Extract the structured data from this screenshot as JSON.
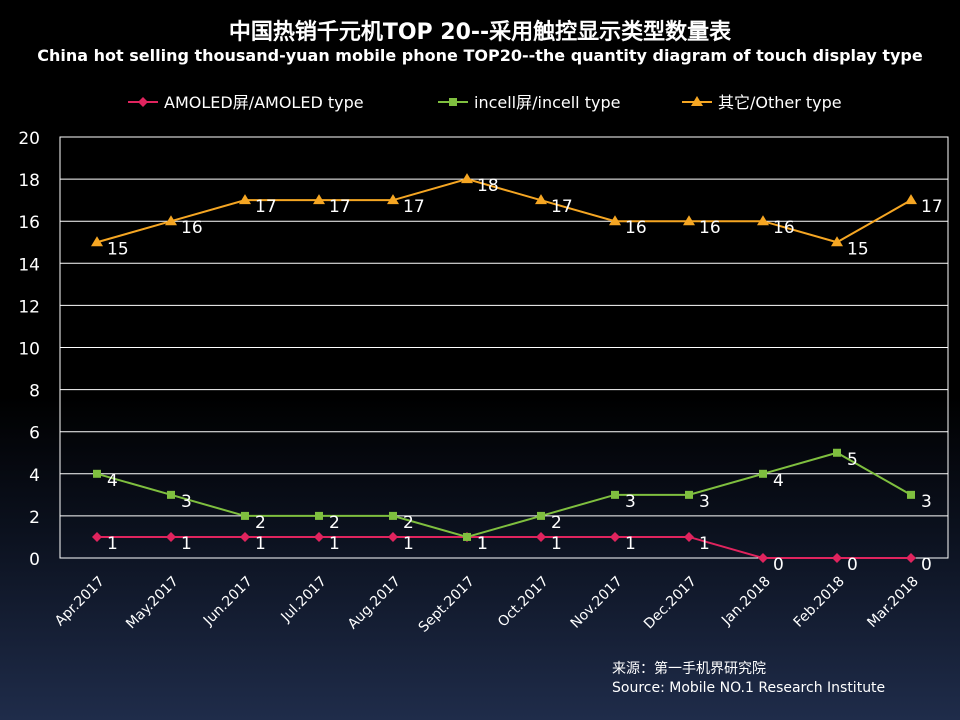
{
  "header": {
    "title_cn": "中国热销千元机TOP 20--采用触控显示类型数量表",
    "title_en": "China hot selling thousand-yuan mobile phone TOP20--the quantity diagram of touch display type"
  },
  "source": {
    "line_cn": "来源：第一手机界研究院",
    "line_en": "Source: Mobile NO.1 Research Institute"
  },
  "chart_data": {
    "type": "line",
    "categories": [
      "Apr.2017",
      "May.2017",
      "Jun.2017",
      "Jul.2017",
      "Aug.2017",
      "Sept.2017",
      "Oct.2017",
      "Nov.2017",
      "Dec.2017",
      "Jan.2018",
      "Feb.2018",
      "Mar.2018"
    ],
    "series": [
      {
        "name": "AMOLED屏/AMOLED type",
        "values": [
          1,
          1,
          1,
          1,
          1,
          1,
          1,
          1,
          1,
          0,
          0,
          0
        ],
        "color": "#e0245e",
        "marker": "diamond"
      },
      {
        "name": "incell屏/incell type",
        "values": [
          4,
          3,
          2,
          2,
          2,
          1,
          2,
          3,
          3,
          4,
          5,
          3
        ],
        "color": "#7fbf3f",
        "marker": "square"
      },
      {
        "name": "其它/Other type",
        "values": [
          15,
          16,
          17,
          17,
          17,
          18,
          17,
          16,
          16,
          16,
          15,
          17
        ],
        "color": "#f5a623",
        "marker": "triangle"
      }
    ],
    "ylim": [
      0,
      20
    ],
    "yticks": [
      0,
      2,
      4,
      6,
      8,
      10,
      12,
      14,
      16,
      18,
      20
    ],
    "grid": true,
    "legend_position": "top",
    "data_labels": true
  }
}
